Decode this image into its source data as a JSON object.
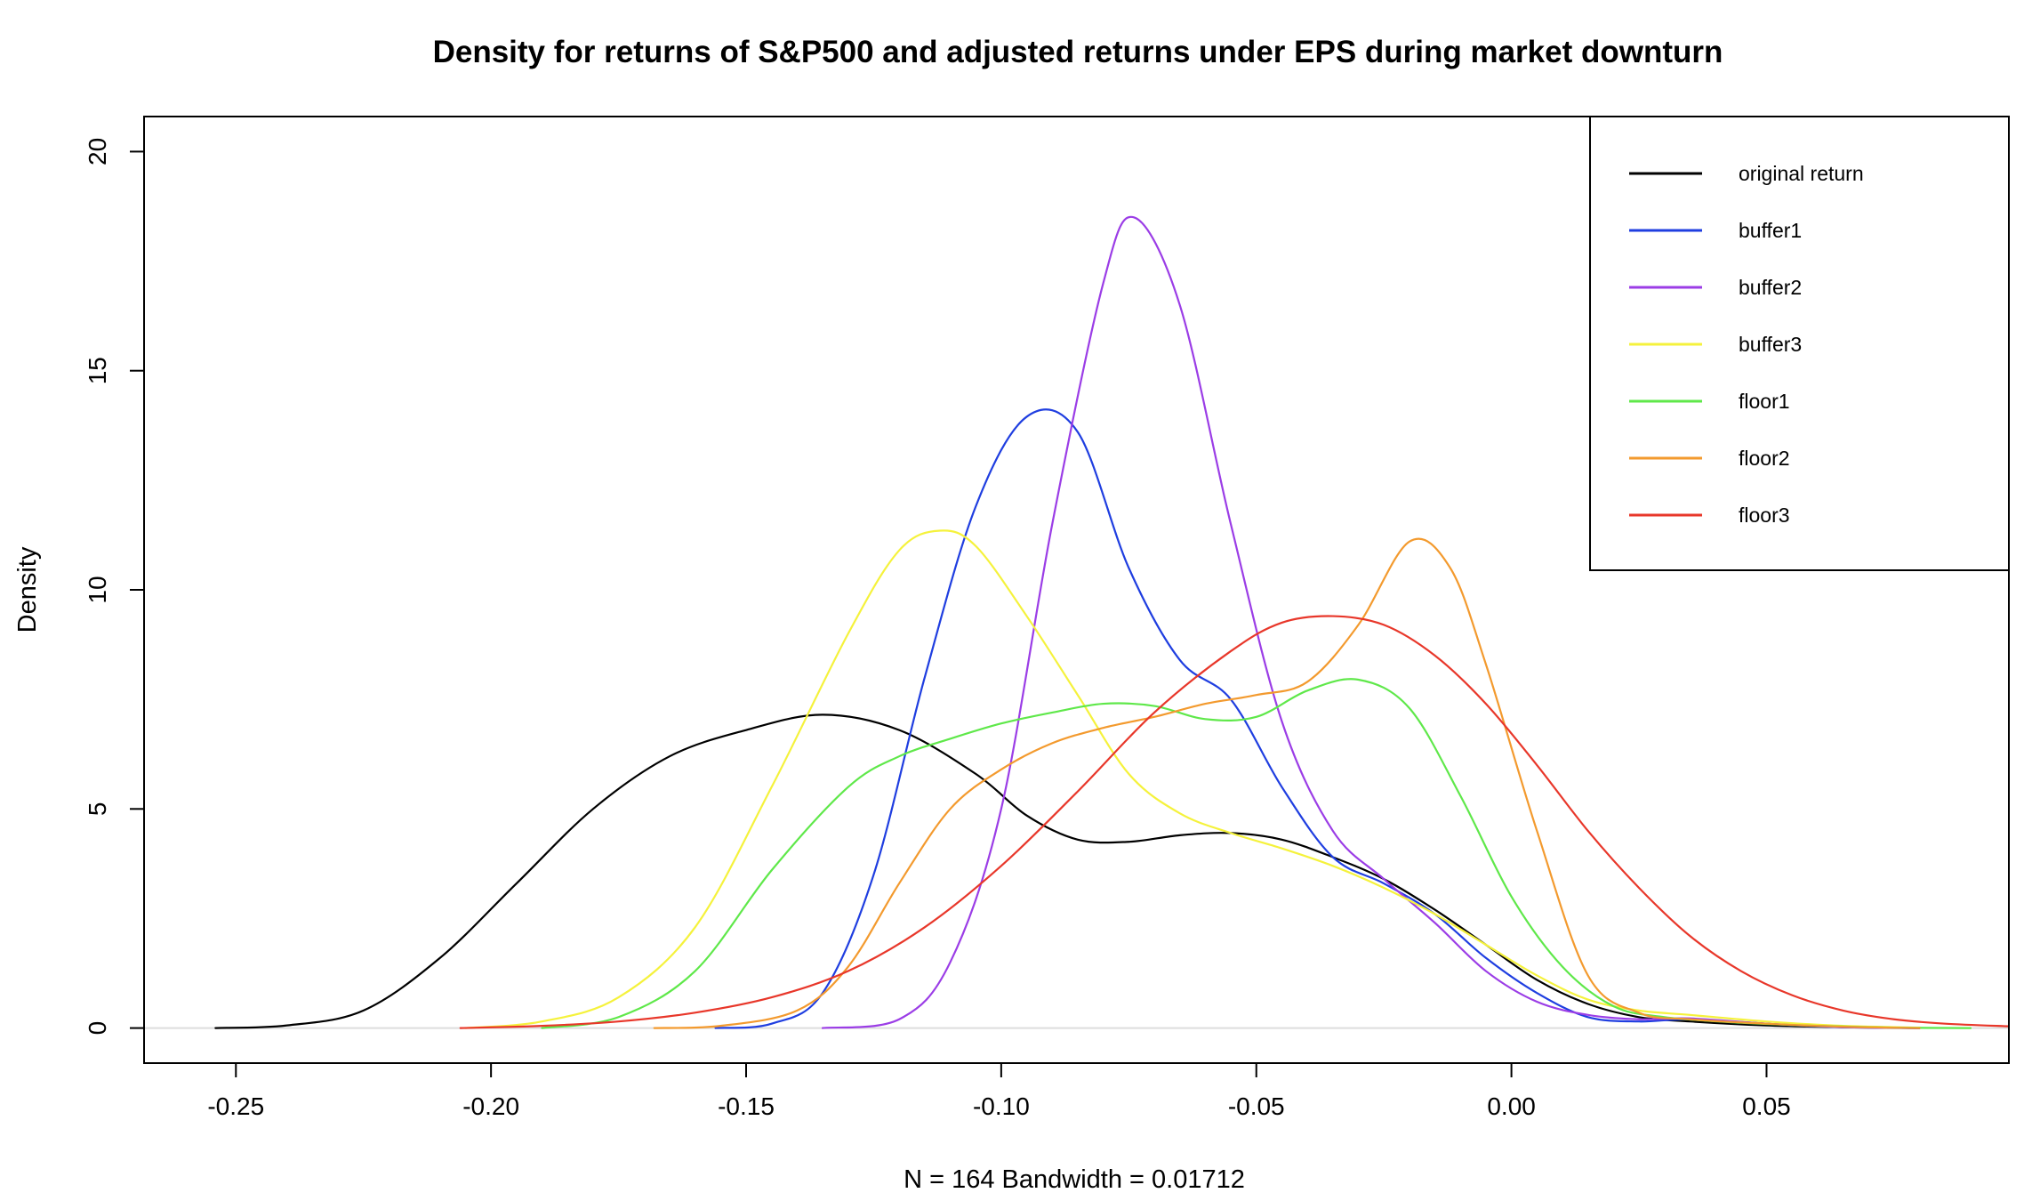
{
  "chart_data": {
    "type": "line",
    "title": "Density for returns of S&P500 and adjusted returns under EPS during market downturn",
    "xlabel": "N = 164   Bandwidth = 0.01712",
    "ylabel": "Density",
    "xlim": [
      -0.268,
      0.0975
    ],
    "ylim": [
      -0.8,
      20.8
    ],
    "x_ticks": [
      -0.25,
      -0.2,
      -0.15,
      -0.1,
      -0.05,
      0.0,
      0.05
    ],
    "x_tick_labels": [
      "-0.25",
      "-0.20",
      "-0.15",
      "-0.10",
      "-0.05",
      "0.00",
      "0.05"
    ],
    "y_ticks": [
      0,
      5,
      10,
      15,
      20
    ],
    "y_tick_labels": [
      "0",
      "5",
      "10",
      "15",
      "20"
    ],
    "grid": false,
    "legend_position": "top-right",
    "series": [
      {
        "name": "original return",
        "color": "#000000",
        "points": [
          [
            -0.254,
            0.0
          ],
          [
            -0.24,
            0.06
          ],
          [
            -0.225,
            0.4
          ],
          [
            -0.21,
            1.6
          ],
          [
            -0.195,
            3.3
          ],
          [
            -0.18,
            5.0
          ],
          [
            -0.165,
            6.2
          ],
          [
            -0.15,
            6.8
          ],
          [
            -0.135,
            7.15
          ],
          [
            -0.12,
            6.8
          ],
          [
            -0.105,
            5.8
          ],
          [
            -0.095,
            4.85
          ],
          [
            -0.085,
            4.3
          ],
          [
            -0.075,
            4.25
          ],
          [
            -0.065,
            4.4
          ],
          [
            -0.055,
            4.45
          ],
          [
            -0.045,
            4.3
          ],
          [
            -0.035,
            3.9
          ],
          [
            -0.025,
            3.4
          ],
          [
            -0.015,
            2.7
          ],
          [
            -0.005,
            1.9
          ],
          [
            0.005,
            1.1
          ],
          [
            0.015,
            0.55
          ],
          [
            0.025,
            0.25
          ],
          [
            0.035,
            0.15
          ],
          [
            0.05,
            0.06
          ],
          [
            0.065,
            0.02
          ],
          [
            0.08,
            0.0
          ]
        ]
      },
      {
        "name": "buffer1",
        "color": "#1f3ee0",
        "points": [
          [
            -0.156,
            0.0
          ],
          [
            -0.145,
            0.1
          ],
          [
            -0.135,
            0.8
          ],
          [
            -0.125,
            3.5
          ],
          [
            -0.115,
            8.0
          ],
          [
            -0.105,
            11.9
          ],
          [
            -0.095,
            13.95
          ],
          [
            -0.085,
            13.6
          ],
          [
            -0.075,
            10.5
          ],
          [
            -0.065,
            8.4
          ],
          [
            -0.055,
            7.5
          ],
          [
            -0.045,
            5.5
          ],
          [
            -0.035,
            3.9
          ],
          [
            -0.025,
            3.3
          ],
          [
            -0.015,
            2.6
          ],
          [
            -0.005,
            1.6
          ],
          [
            0.005,
            0.8
          ],
          [
            0.015,
            0.25
          ],
          [
            0.025,
            0.15
          ],
          [
            0.035,
            0.2
          ],
          [
            0.05,
            0.1
          ],
          [
            0.065,
            0.02
          ],
          [
            0.08,
            0.0
          ]
        ]
      },
      {
        "name": "buffer2",
        "color": "#9b3de6",
        "points": [
          [
            -0.135,
            0.0
          ],
          [
            -0.12,
            0.2
          ],
          [
            -0.11,
            1.5
          ],
          [
            -0.1,
            5.0
          ],
          [
            -0.09,
            11.5
          ],
          [
            -0.08,
            17.0
          ],
          [
            -0.074,
            18.5
          ],
          [
            -0.065,
            16.5
          ],
          [
            -0.055,
            11.5
          ],
          [
            -0.045,
            7.0
          ],
          [
            -0.035,
            4.5
          ],
          [
            -0.025,
            3.4
          ],
          [
            -0.015,
            2.4
          ],
          [
            -0.005,
            1.3
          ],
          [
            0.005,
            0.6
          ],
          [
            0.015,
            0.3
          ],
          [
            0.025,
            0.2
          ],
          [
            0.035,
            0.22
          ],
          [
            0.05,
            0.1
          ],
          [
            0.065,
            0.02
          ],
          [
            0.08,
            0.0
          ]
        ]
      },
      {
        "name": "buffer3",
        "color": "#f5f23c",
        "points": [
          [
            -0.205,
            0.0
          ],
          [
            -0.19,
            0.15
          ],
          [
            -0.175,
            0.7
          ],
          [
            -0.16,
            2.3
          ],
          [
            -0.145,
            5.5
          ],
          [
            -0.13,
            9.0
          ],
          [
            -0.12,
            10.9
          ],
          [
            -0.112,
            11.35
          ],
          [
            -0.105,
            11.0
          ],
          [
            -0.095,
            9.4
          ],
          [
            -0.085,
            7.6
          ],
          [
            -0.075,
            5.8
          ],
          [
            -0.065,
            4.9
          ],
          [
            -0.055,
            4.45
          ],
          [
            -0.045,
            4.1
          ],
          [
            -0.035,
            3.7
          ],
          [
            -0.025,
            3.2
          ],
          [
            -0.015,
            2.6
          ],
          [
            -0.005,
            1.9
          ],
          [
            0.005,
            1.2
          ],
          [
            0.015,
            0.65
          ],
          [
            0.025,
            0.4
          ],
          [
            0.035,
            0.3
          ],
          [
            0.05,
            0.15
          ],
          [
            0.065,
            0.05
          ],
          [
            0.08,
            0.01
          ]
        ]
      },
      {
        "name": "floor1",
        "color": "#5fe84a",
        "points": [
          [
            -0.19,
            0.0
          ],
          [
            -0.175,
            0.25
          ],
          [
            -0.16,
            1.3
          ],
          [
            -0.145,
            3.6
          ],
          [
            -0.13,
            5.5
          ],
          [
            -0.12,
            6.2
          ],
          [
            -0.11,
            6.6
          ],
          [
            -0.1,
            6.95
          ],
          [
            -0.09,
            7.2
          ],
          [
            -0.08,
            7.4
          ],
          [
            -0.07,
            7.35
          ],
          [
            -0.06,
            7.05
          ],
          [
            -0.05,
            7.1
          ],
          [
            -0.04,
            7.7
          ],
          [
            -0.03,
            7.95
          ],
          [
            -0.02,
            7.3
          ],
          [
            -0.01,
            5.3
          ],
          [
            0.0,
            3.0
          ],
          [
            0.01,
            1.4
          ],
          [
            0.02,
            0.5
          ],
          [
            0.03,
            0.25
          ],
          [
            0.045,
            0.12
          ],
          [
            0.06,
            0.05
          ],
          [
            0.075,
            0.01
          ],
          [
            0.09,
            0.0
          ]
        ]
      },
      {
        "name": "floor2",
        "color": "#f39a2e",
        "points": [
          [
            -0.168,
            0.0
          ],
          [
            -0.155,
            0.05
          ],
          [
            -0.14,
            0.4
          ],
          [
            -0.13,
            1.4
          ],
          [
            -0.12,
            3.3
          ],
          [
            -0.11,
            5.0
          ],
          [
            -0.1,
            5.9
          ],
          [
            -0.09,
            6.5
          ],
          [
            -0.08,
            6.85
          ],
          [
            -0.07,
            7.1
          ],
          [
            -0.06,
            7.4
          ],
          [
            -0.05,
            7.6
          ],
          [
            -0.04,
            7.9
          ],
          [
            -0.03,
            9.2
          ],
          [
            -0.02,
            11.1
          ],
          [
            -0.012,
            10.5
          ],
          [
            -0.005,
            8.3
          ],
          [
            0.005,
            4.5
          ],
          [
            0.015,
            1.2
          ],
          [
            0.025,
            0.35
          ],
          [
            0.035,
            0.2
          ],
          [
            0.05,
            0.1
          ],
          [
            0.065,
            0.03
          ],
          [
            0.08,
            0.0
          ]
        ]
      },
      {
        "name": "floor3",
        "color": "#e8372a",
        "points": [
          [
            -0.206,
            0.0
          ],
          [
            -0.19,
            0.05
          ],
          [
            -0.175,
            0.15
          ],
          [
            -0.16,
            0.35
          ],
          [
            -0.145,
            0.7
          ],
          [
            -0.13,
            1.3
          ],
          [
            -0.115,
            2.3
          ],
          [
            -0.1,
            3.7
          ],
          [
            -0.085,
            5.4
          ],
          [
            -0.07,
            7.2
          ],
          [
            -0.055,
            8.6
          ],
          [
            -0.045,
            9.25
          ],
          [
            -0.035,
            9.4
          ],
          [
            -0.025,
            9.2
          ],
          [
            -0.015,
            8.5
          ],
          [
            -0.005,
            7.4
          ],
          [
            0.005,
            6.0
          ],
          [
            0.015,
            4.5
          ],
          [
            0.025,
            3.2
          ],
          [
            0.035,
            2.1
          ],
          [
            0.045,
            1.3
          ],
          [
            0.055,
            0.75
          ],
          [
            0.065,
            0.4
          ],
          [
            0.075,
            0.2
          ],
          [
            0.085,
            0.1
          ],
          [
            0.0975,
            0.04
          ]
        ]
      }
    ]
  }
}
